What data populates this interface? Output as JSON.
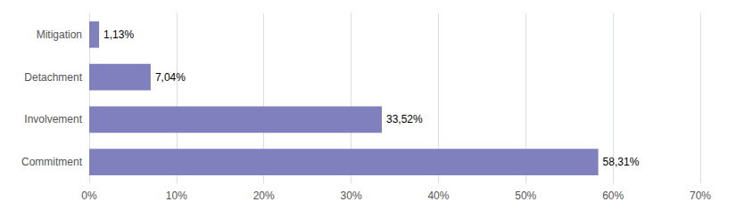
{
  "chart_data": {
    "type": "bar",
    "orientation": "horizontal",
    "categories": [
      "Commitment",
      "Involvement",
      "Detachment",
      "Mitigation"
    ],
    "values": [
      58.31,
      33.52,
      7.04,
      1.13
    ],
    "value_labels": [
      "58,31%",
      "33,52%",
      "7,04%",
      "1,13%"
    ],
    "data_labels": true,
    "color": "#8080be",
    "xlim": [
      0,
      70
    ],
    "xticks": [
      {
        "value": 0,
        "label": "0%"
      },
      {
        "value": 10,
        "label": "10%"
      },
      {
        "value": 20,
        "label": "20%"
      },
      {
        "value": 30,
        "label": "30%"
      },
      {
        "value": 40,
        "label": "40%"
      },
      {
        "value": 50,
        "label": "50%"
      },
      {
        "value": 60,
        "label": "60%"
      },
      {
        "value": 70,
        "label": "70%"
      }
    ],
    "grid": true
  }
}
